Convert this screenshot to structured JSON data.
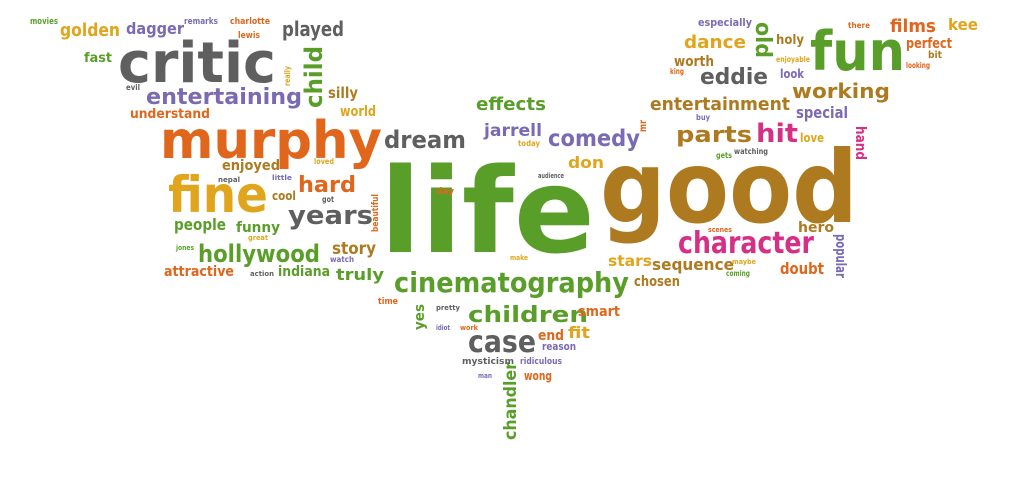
{
  "palette": {
    "orange": "#e0661c",
    "gold": "#e0a51c",
    "green": "#5a9e2a",
    "brown": "#ad7a1f",
    "gray": "#5f5f5f",
    "purple": "#7a6ab3",
    "pink": "#d62f86"
  },
  "words": [
    {
      "text": "life",
      "color": "green"
    },
    {
      "text": "good",
      "color": "brown"
    },
    {
      "text": "murphy",
      "color": "orange"
    },
    {
      "text": "critic",
      "color": "gray"
    },
    {
      "text": "fun",
      "color": "green"
    },
    {
      "text": "fine",
      "color": "gold"
    },
    {
      "text": "character",
      "color": "pink"
    },
    {
      "text": "cinematography",
      "color": "green"
    },
    {
      "text": "years",
      "color": "gray"
    },
    {
      "text": "case",
      "color": "gray"
    },
    {
      "text": "hollywood",
      "color": "green"
    },
    {
      "text": "dream",
      "color": "gray"
    },
    {
      "text": "comedy",
      "color": "purple"
    },
    {
      "text": "parts",
      "color": "brown"
    },
    {
      "text": "hit",
      "color": "pink"
    },
    {
      "text": "entertaining",
      "color": "purple"
    },
    {
      "text": "entertainment",
      "color": "brown"
    },
    {
      "text": "working",
      "color": "brown"
    },
    {
      "text": "eddie",
      "color": "gray"
    },
    {
      "text": "children",
      "color": "green"
    },
    {
      "text": "hard",
      "color": "orange"
    },
    {
      "text": "child",
      "color": "green"
    },
    {
      "text": "played",
      "color": "gray"
    },
    {
      "text": "golden",
      "color": "gold"
    },
    {
      "text": "dagger",
      "color": "purple"
    },
    {
      "text": "dance",
      "color": "gold"
    },
    {
      "text": "old",
      "color": "green"
    },
    {
      "text": "films",
      "color": "orange"
    },
    {
      "text": "kee",
      "color": "gold"
    },
    {
      "text": "effects",
      "color": "green"
    },
    {
      "text": "jarrell",
      "color": "purple"
    },
    {
      "text": "sequence",
      "color": "brown"
    },
    {
      "text": "stars",
      "color": "gold"
    },
    {
      "text": "story",
      "color": "brown"
    },
    {
      "text": "chandler",
      "color": "green"
    },
    {
      "text": "people",
      "color": "green"
    },
    {
      "text": "enjoyed",
      "color": "brown"
    },
    {
      "text": "funny",
      "color": "green"
    },
    {
      "text": "don",
      "color": "gold"
    },
    {
      "text": "truly",
      "color": "green"
    },
    {
      "text": "indiana",
      "color": "green"
    },
    {
      "text": "attractive",
      "color": "orange"
    },
    {
      "text": "doubt",
      "color": "orange"
    },
    {
      "text": "special",
      "color": "purple"
    },
    {
      "text": "silly",
      "color": "brown"
    },
    {
      "text": "world",
      "color": "gold"
    },
    {
      "text": "understand",
      "color": "orange"
    },
    {
      "text": "fast",
      "color": "green"
    },
    {
      "text": "worth",
      "color": "brown"
    },
    {
      "text": "perfect",
      "color": "orange"
    },
    {
      "text": "holy",
      "color": "brown"
    },
    {
      "text": "look",
      "color": "purple"
    },
    {
      "text": "hand",
      "color": "pink"
    },
    {
      "text": "popular",
      "color": "purple"
    },
    {
      "text": "hero",
      "color": "brown"
    },
    {
      "text": "chosen",
      "color": "brown"
    },
    {
      "text": "smart",
      "color": "orange"
    },
    {
      "text": "end",
      "color": "orange"
    },
    {
      "text": "fit",
      "color": "gold"
    },
    {
      "text": "yes",
      "color": "green"
    },
    {
      "text": "cool",
      "color": "brown"
    },
    {
      "text": "wong",
      "color": "orange"
    },
    {
      "text": "love",
      "color": "gold"
    },
    {
      "text": "especially",
      "color": "purple"
    },
    {
      "text": "reason",
      "color": "purple"
    },
    {
      "text": "ridiculous",
      "color": "purple"
    },
    {
      "text": "mysticism",
      "color": "gray"
    },
    {
      "text": "movies",
      "color": "green"
    },
    {
      "text": "remarks",
      "color": "purple"
    },
    {
      "text": "charlotte",
      "color": "orange"
    },
    {
      "text": "lewis",
      "color": "orange"
    },
    {
      "text": "really",
      "color": "gold"
    },
    {
      "text": "evil",
      "color": "gray"
    },
    {
      "text": "enjoyable",
      "color": "gold"
    },
    {
      "text": "bit",
      "color": "brown"
    },
    {
      "text": "looking",
      "color": "orange"
    },
    {
      "text": "king",
      "color": "orange"
    },
    {
      "text": "buy",
      "color": "purple"
    },
    {
      "text": "mr",
      "color": "orange"
    },
    {
      "text": "today",
      "color": "gold"
    },
    {
      "text": "audience",
      "color": "gray"
    },
    {
      "text": "gets",
      "color": "green"
    },
    {
      "text": "watching",
      "color": "gray"
    },
    {
      "text": "scenes",
      "color": "orange"
    },
    {
      "text": "maybe",
      "color": "gold"
    },
    {
      "text": "coming",
      "color": "green"
    },
    {
      "text": "there",
      "color": "orange"
    },
    {
      "text": "loved",
      "color": "gold"
    },
    {
      "text": "little",
      "color": "purple"
    },
    {
      "text": "nepal",
      "color": "gray"
    },
    {
      "text": "got",
      "color": "gray"
    },
    {
      "text": "day",
      "color": "orange"
    },
    {
      "text": "beautiful",
      "color": "orange"
    },
    {
      "text": "jones",
      "color": "green"
    },
    {
      "text": "great",
      "color": "gold"
    },
    {
      "text": "watch",
      "color": "purple"
    },
    {
      "text": "action",
      "color": "gray"
    },
    {
      "text": "time",
      "color": "orange"
    },
    {
      "text": "pretty",
      "color": "gray"
    },
    {
      "text": "idiot",
      "color": "purple"
    },
    {
      "text": "work",
      "color": "orange"
    },
    {
      "text": "man",
      "color": "purple"
    },
    {
      "text": "make",
      "color": "gold"
    }
  ]
}
